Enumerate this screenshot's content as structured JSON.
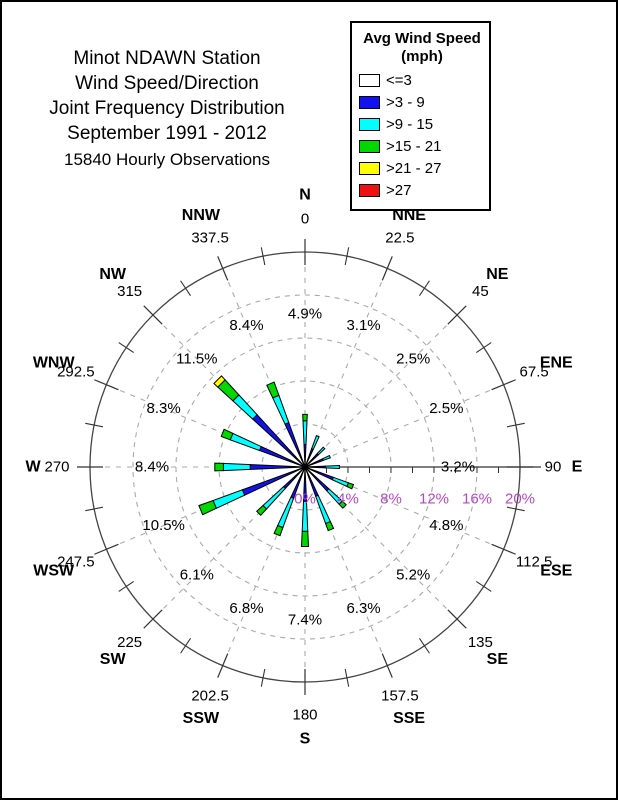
{
  "page": {
    "background": "#ffffff",
    "border_color": "#000000"
  },
  "title": {
    "lines": [
      "Minot NDAWN Station",
      "Wind Speed/Direction",
      "Joint Frequency Distribution",
      "September 1991 - 2012"
    ],
    "subtitle": "15840 Hourly Observations"
  },
  "legend": {
    "title": "Avg Wind Speed",
    "subtitle": "(mph)"
  },
  "chart_data": {
    "type": "wind-rose stacked polar bar",
    "units": "percent frequency of hourly observations",
    "ring_step_pct": 4,
    "max_ring_pct": 20,
    "rings_dashed_pct": [
      4,
      8,
      12,
      16
    ],
    "ring_labels": [
      "0%",
      "4%",
      "8%",
      "12%",
      "16%",
      "20%"
    ],
    "ring_label_color": "#b846c8",
    "grid_color": "#aaaaaa",
    "axis_color": "#444444",
    "speed_bins": [
      {
        "label": "<=3",
        "color": "#ffffff"
      },
      {
        "label": ">3 - 9",
        "color": "#1212ee"
      },
      {
        "label": ">9 - 15",
        "color": "#00ffff"
      },
      {
        "label": ">15 - 21",
        "color": "#00d800"
      },
      {
        "label": ">21 - 27",
        "color": "#ffff00"
      },
      {
        "label": ">27",
        "color": "#ee1111"
      }
    ],
    "directions": [
      {
        "name": "N",
        "deg": "0",
        "angle": 0,
        "total": "4.9%",
        "stack": [
          0,
          2.1,
          2.2,
          0.6,
          0,
          0
        ]
      },
      {
        "name": "NNE",
        "deg": "22.5",
        "angle": 22.5,
        "total": "3.1%",
        "stack": [
          0,
          1.8,
          1.3,
          0,
          0,
          0
        ]
      },
      {
        "name": "NE",
        "deg": "45",
        "angle": 45,
        "total": "2.5%",
        "stack": [
          0,
          1.7,
          0.8,
          0,
          0,
          0
        ]
      },
      {
        "name": "ENE",
        "deg": "67.5",
        "angle": 67.5,
        "total": "2.5%",
        "stack": [
          0,
          1.8,
          0.7,
          0,
          0,
          0
        ]
      },
      {
        "name": "E",
        "deg": "90",
        "angle": 90,
        "total": "3.2%",
        "stack": [
          0,
          1.9,
          1.3,
          0,
          0,
          0
        ]
      },
      {
        "name": "ESE",
        "deg": "112.5",
        "angle": 112.5,
        "total": "4.8%",
        "stack": [
          0,
          2.8,
          1.5,
          0.5,
          0,
          0
        ]
      },
      {
        "name": "SE",
        "deg": "135",
        "angle": 135,
        "total": "5.2%",
        "stack": [
          0,
          3.0,
          1.7,
          0.5,
          0,
          0
        ]
      },
      {
        "name": "SSE",
        "deg": "157.5",
        "angle": 157.5,
        "total": "6.3%",
        "stack": [
          0,
          2.9,
          2.7,
          0.7,
          0,
          0
        ]
      },
      {
        "name": "S",
        "deg": "180",
        "angle": 180,
        "total": "7.4%",
        "stack": [
          0,
          3.2,
          2.8,
          1.4,
          0,
          0
        ]
      },
      {
        "name": "SSW",
        "deg": "202.5",
        "angle": 202.5,
        "total": "6.8%",
        "stack": [
          0,
          3.1,
          2.9,
          0.8,
          0,
          0
        ]
      },
      {
        "name": "SW",
        "deg": "225",
        "angle": 225,
        "total": "6.1%",
        "stack": [
          0,
          2.7,
          2.6,
          0.8,
          0,
          0
        ]
      },
      {
        "name": "WSW",
        "deg": "247.5",
        "angle": 247.5,
        "total": "10.5%",
        "stack": [
          0,
          6.2,
          2.9,
          1.4,
          0,
          0
        ]
      },
      {
        "name": "W",
        "deg": "270",
        "angle": 270,
        "total": "8.4%",
        "stack": [
          0,
          5.1,
          2.5,
          0.8,
          0,
          0
        ]
      },
      {
        "name": "WNW",
        "deg": "292.5",
        "angle": 292.5,
        "total": "8.3%",
        "stack": [
          0,
          4.5,
          2.9,
          0.9,
          0,
          0
        ]
      },
      {
        "name": "NW",
        "deg": "315",
        "angle": 315,
        "total": "11.5%",
        "stack": [
          0,
          6.6,
          2.5,
          1.9,
          0.5,
          0
        ]
      },
      {
        "name": "NNW",
        "deg": "337.5",
        "angle": 337.5,
        "total": "8.4%",
        "stack": [
          0,
          4.4,
          2.7,
          1.3,
          0,
          0
        ]
      }
    ]
  }
}
